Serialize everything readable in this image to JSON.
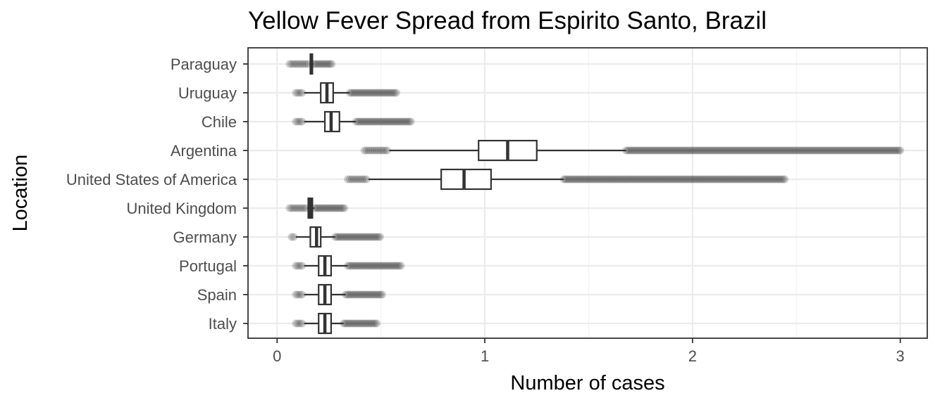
{
  "chart_data": {
    "type": "boxplot",
    "orientation": "horizontal",
    "title": "Yellow Fever Spread from Espirito Santo, Brazil",
    "xlabel": "Number of cases",
    "ylabel": "Location",
    "xlim": [
      -0.14,
      3.13
    ],
    "x_ticks": [
      0,
      1,
      2,
      3
    ],
    "grid": true,
    "legend": "none",
    "colors": {
      "box_line": "#333333",
      "outlier": "#333333",
      "grid": "#ebebeb",
      "panel_border": "#333333"
    },
    "categories": [
      "Paraguay",
      "Uruguay",
      "Chile",
      "Argentina",
      "United States of America",
      "United Kingdom",
      "Germany",
      "Portugal",
      "Spain",
      "Italy"
    ],
    "boxes": [
      {
        "category": "Paraguay",
        "whisker_low": 0.155,
        "q1": 0.16,
        "median": 0.165,
        "q3": 0.17,
        "whisker_high": 0.175,
        "outlier_min": 0.06,
        "outlier_max": 0.27
      },
      {
        "category": "Uruguay",
        "whisker_low": 0.13,
        "q1": 0.21,
        "median": 0.24,
        "q3": 0.27,
        "whisker_high": 0.35,
        "outlier_min": 0.09,
        "outlier_max": 0.58
      },
      {
        "category": "Chile",
        "whisker_low": 0.13,
        "q1": 0.23,
        "median": 0.26,
        "q3": 0.3,
        "whisker_high": 0.38,
        "outlier_min": 0.09,
        "outlier_max": 0.65
      },
      {
        "category": "Argentina",
        "whisker_low": 0.54,
        "q1": 0.97,
        "median": 1.11,
        "q3": 1.25,
        "whisker_high": 1.68,
        "outlier_min": 0.42,
        "outlier_max": 3.0
      },
      {
        "category": "United States of America",
        "whisker_low": 0.44,
        "q1": 0.79,
        "median": 0.9,
        "q3": 1.03,
        "whisker_high": 1.38,
        "outlier_min": 0.34,
        "outlier_max": 2.45
      },
      {
        "category": "United Kingdom",
        "whisker_low": 0.145,
        "q1": 0.15,
        "median": 0.16,
        "q3": 0.17,
        "whisker_high": 0.18,
        "outlier_min": 0.06,
        "outlier_max": 0.33
      },
      {
        "category": "Germany",
        "whisker_low": 0.09,
        "q1": 0.16,
        "median": 0.19,
        "q3": 0.21,
        "whisker_high": 0.28,
        "outlier_min": 0.07,
        "outlier_max": 0.5
      },
      {
        "category": "Portugal",
        "whisker_low": 0.13,
        "q1": 0.2,
        "median": 0.23,
        "q3": 0.26,
        "whisker_high": 0.34,
        "outlier_min": 0.09,
        "outlier_max": 0.6
      },
      {
        "category": "Spain",
        "whisker_low": 0.13,
        "q1": 0.2,
        "median": 0.23,
        "q3": 0.26,
        "whisker_high": 0.33,
        "outlier_min": 0.09,
        "outlier_max": 0.51
      },
      {
        "category": "Italy",
        "whisker_low": 0.13,
        "q1": 0.2,
        "median": 0.23,
        "q3": 0.26,
        "whisker_high": 0.32,
        "outlier_min": 0.09,
        "outlier_max": 0.48
      }
    ]
  }
}
